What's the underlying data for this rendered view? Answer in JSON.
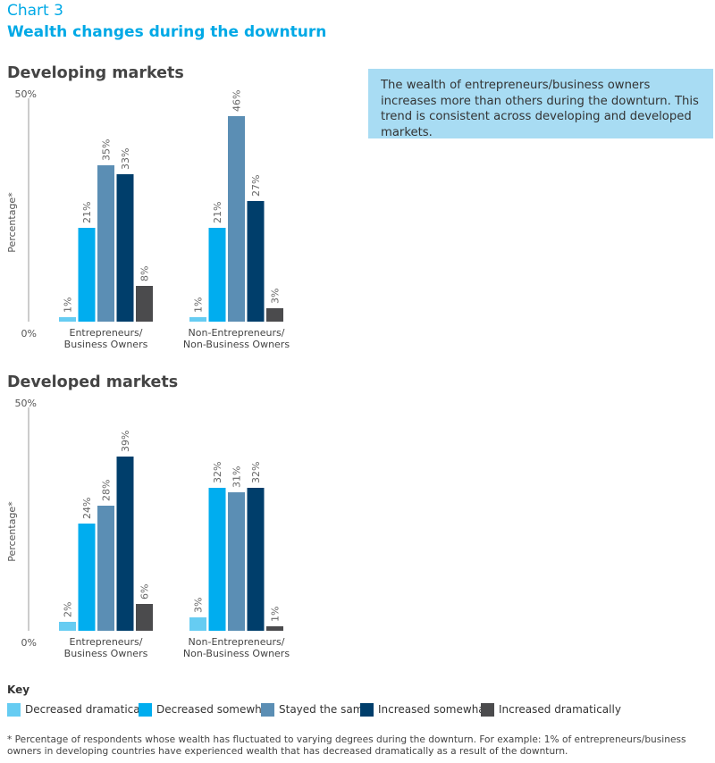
{
  "header": {
    "chart_label": "Chart 3",
    "title": "Wealth changes during the downturn"
  },
  "callout": {
    "text": "The wealth of entrepreneurs/business owners increases more than others during the downturn. This trend is consistent across developing and developed markets."
  },
  "colors": {
    "decreased_dramatically": "#66ccf2",
    "decreased_somewhat": "#00adef",
    "stayed_the_same": "#5b8eb4",
    "increased_somewhat": "#003e6b",
    "increased_dramatically": "#4b4b4d"
  },
  "key": {
    "title": "Key",
    "items": [
      {
        "label": "Decreased dramatically",
        "color": "#66ccf2"
      },
      {
        "label": "Decreased somewhat",
        "color": "#00adef"
      },
      {
        "label": "Stayed the same",
        "color": "#5b8eb4"
      },
      {
        "label": "Increased somewhat",
        "color": "#003e6b"
      },
      {
        "label": "Increased dramatically",
        "color": "#4b4b4d"
      }
    ]
  },
  "footnote": "* Percentage of respondents whose wealth has fluctuated to varying degrees during the downturn. For example: 1% of entrepreneurs/business owners in developing countries have experienced wealth that has decreased dramatically as a result of the downturn.",
  "chart_data": [
    {
      "type": "bar",
      "title": "Developing markets",
      "ylabel": "Percentage*",
      "ylim": [
        0,
        50
      ],
      "ytick_labels": [
        "0%",
        "50%"
      ],
      "grid": false,
      "categories": [
        [
          "Entrepreneurs/",
          "Business Owners"
        ],
        [
          "Non-Entrepreneurs/",
          "Non-Business Owners"
        ]
      ],
      "series": [
        {
          "name": "Decreased dramatically",
          "values": [
            1,
            1
          ],
          "labels": [
            "1%",
            "1%"
          ]
        },
        {
          "name": "Decreased somewhat",
          "values": [
            21,
            21
          ],
          "labels": [
            "21%",
            "21%"
          ]
        },
        {
          "name": "Stayed the same",
          "values": [
            35,
            46
          ],
          "labels": [
            "35%",
            "46%"
          ]
        },
        {
          "name": "Increased somewhat",
          "values": [
            33,
            27
          ],
          "labels": [
            "33%",
            "27%"
          ]
        },
        {
          "name": "Increased dramatically",
          "values": [
            8,
            3
          ],
          "labels": [
            "8%",
            "3%"
          ]
        }
      ]
    },
    {
      "type": "bar",
      "title": "Developed markets",
      "ylabel": "Percentage*",
      "ylim": [
        0,
        50
      ],
      "ytick_labels": [
        "0%",
        "50%"
      ],
      "grid": false,
      "categories": [
        [
          "Entrepreneurs/",
          "Business Owners"
        ],
        [
          "Non-Entrepreneurs/",
          "Non-Business Owners"
        ]
      ],
      "series": [
        {
          "name": "Decreased dramatically",
          "values": [
            2,
            3
          ],
          "labels": [
            "2%",
            "3%"
          ]
        },
        {
          "name": "Decreased somewhat",
          "values": [
            24,
            32
          ],
          "labels": [
            "24%",
            "32%"
          ]
        },
        {
          "name": "Stayed the same",
          "values": [
            28,
            31
          ],
          "labels": [
            "28%",
            "31%"
          ]
        },
        {
          "name": "Increased somewhat",
          "values": [
            39,
            32
          ],
          "labels": [
            "39%",
            "32%"
          ]
        },
        {
          "name": "Increased dramatically",
          "values": [
            6,
            1
          ],
          "labels": [
            "6%",
            "1%"
          ]
        }
      ]
    }
  ]
}
